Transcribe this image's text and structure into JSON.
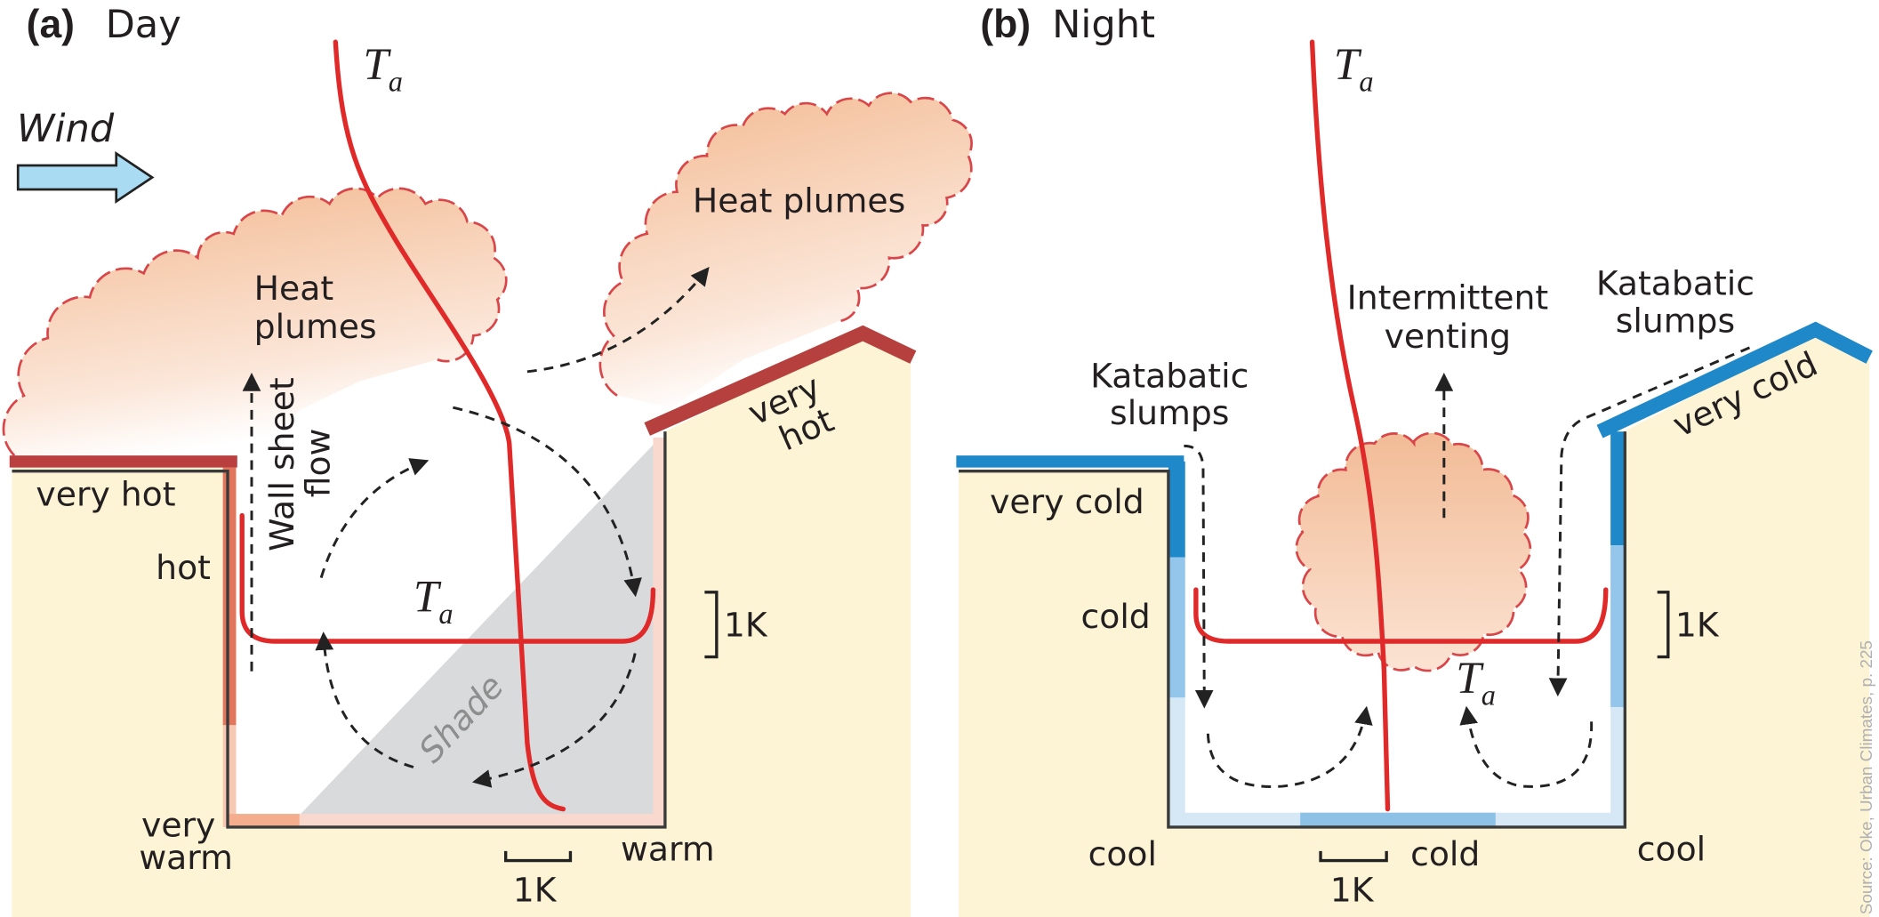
{
  "panels": [
    {
      "label": "(a)",
      "title": "Day",
      "wind": "Wind",
      "air_temperature": [
        {
          "symbol": "T",
          "subscript": "a"
        },
        {
          "symbol": "T",
          "subscript": "a"
        }
      ],
      "annotations": {
        "heat_plumes_left": [
          "Heat",
          "plumes"
        ],
        "heat_plumes_right": "Heat plumes",
        "wall_sheet_flow": [
          "Wall sheet",
          "flow"
        ],
        "shade": "Shade"
      },
      "surfaces": {
        "roof_left": "very hot",
        "roof_right": [
          "very",
          "hot"
        ],
        "wall_left": "hot",
        "corner_left": [
          "very",
          "warm"
        ],
        "corner_right": "warm"
      },
      "scales": [
        "1K",
        "1K"
      ]
    },
    {
      "label": "(b)",
      "title": "Night",
      "air_temperature": [
        {
          "symbol": "T",
          "subscript": "a"
        },
        {
          "symbol": "T",
          "subscript": "a"
        }
      ],
      "annotations": {
        "venting": [
          "Intermittent",
          "venting"
        ],
        "katabatic_left": [
          "Katabatic",
          "slumps"
        ],
        "katabatic_right": [
          "Katabatic",
          "slumps"
        ]
      },
      "surfaces": {
        "roof_left": "very cold",
        "roof_right": "very cold",
        "wall_left": "cold",
        "corner_left": "cool",
        "floor": "cold",
        "corner_right": "cool"
      },
      "scales": [
        "1K",
        "1K"
      ]
    }
  ],
  "source": "Source: Oke, Urban Climates, p. 225"
}
